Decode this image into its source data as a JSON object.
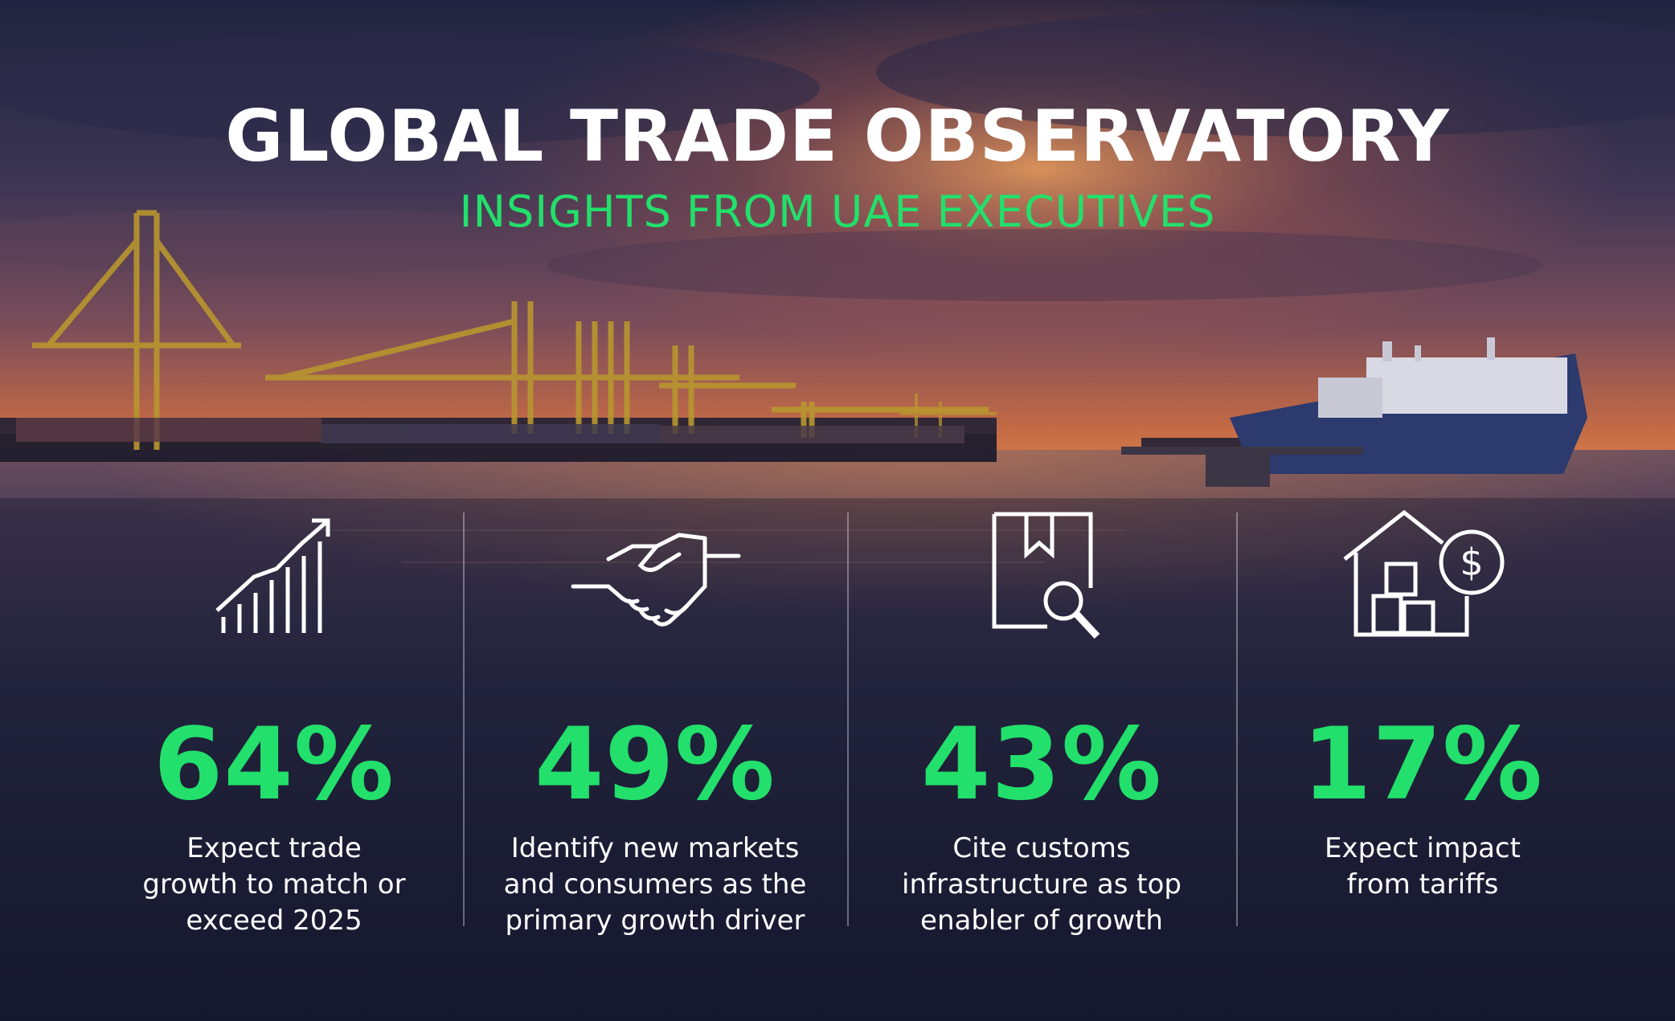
{
  "title": "GLOBAL TRADE OBSERVATORY",
  "subtitle": "INSIGHTS FROM UAE EXECUTIVES",
  "colors": {
    "accent": "#22e06b",
    "text": "#ffffff",
    "background": "#1a1c33"
  },
  "stats": [
    {
      "icon": "growth-chart-icon",
      "value": "64%",
      "description": "Expect trade\ngrowth to match or\nexceed 2025"
    },
    {
      "icon": "handshake-icon",
      "value": "49%",
      "description": "Identify new markets\nand consumers as the\nprimary growth driver"
    },
    {
      "icon": "document-search-icon",
      "value": "43%",
      "description": "Cite customs\ninfrastructure as top\nenabler of growth"
    },
    {
      "icon": "warehouse-dollar-icon",
      "value": "17%",
      "description": "Expect impact\nfrom tariffs"
    }
  ]
}
